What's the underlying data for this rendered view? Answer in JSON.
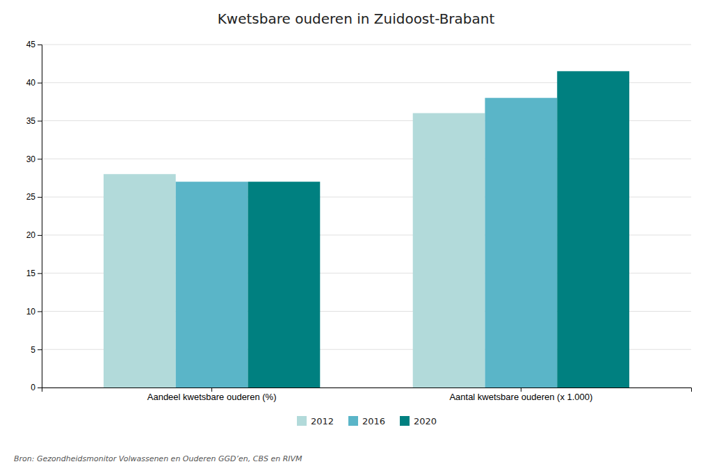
{
  "chart_data": {
    "type": "bar",
    "title": "Kwetsbare ouderen in Zuidoost-Brabant",
    "categories": [
      "Aandeel kwetsbare ouderen (%)",
      "Aantal kwetsbare ouderen (x 1.000)"
    ],
    "series": [
      {
        "name": "2012",
        "color": "#b2dada",
        "values": [
          28,
          36
        ]
      },
      {
        "name": "2016",
        "color": "#5ab5c8",
        "values": [
          27,
          38
        ]
      },
      {
        "name": "2020",
        "color": "#008080",
        "values": [
          27,
          41.5
        ]
      }
    ],
    "ylim": [
      0,
      45
    ],
    "yticks": [
      0,
      5,
      10,
      15,
      20,
      25,
      30,
      35,
      40,
      45
    ],
    "grid": true,
    "legend": "bottom",
    "annotations": [
      "Bron: Gezondheidsmonitor Volwassenen en Ouderen GGD’en, CBS en RIVM"
    ]
  }
}
